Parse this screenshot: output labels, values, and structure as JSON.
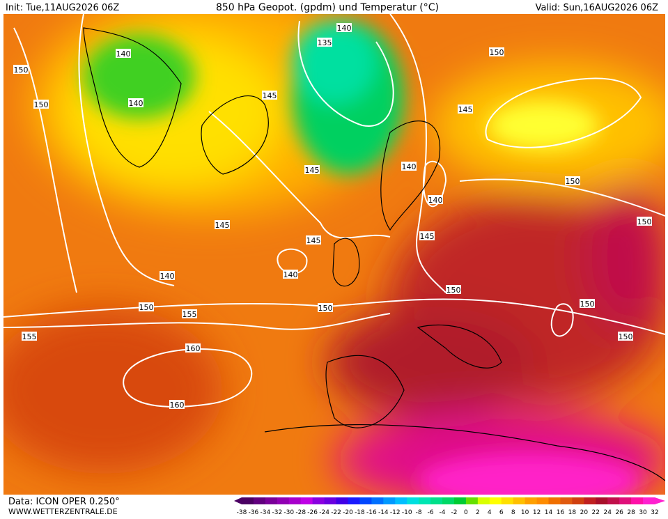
{
  "header": {
    "init": "Init: Tue,11AUG2026 06Z",
    "title": "850 hPa Geopot. (gpdm) und Temperatur (°C)",
    "valid": "Valid: Sun,16AUG2026 06Z"
  },
  "footer": {
    "data": "Data: ICON OPER 0.250°",
    "site": "WWW.WETTERZENTRALE.DE"
  },
  "colorbar": {
    "ticks": [
      -38,
      -36,
      -34,
      -32,
      -30,
      -28,
      -26,
      -24,
      -22,
      -20,
      -18,
      -16,
      -14,
      -12,
      -10,
      -8,
      -6,
      -4,
      -2,
      0,
      2,
      4,
      6,
      8,
      10,
      12,
      14,
      16,
      18,
      20,
      22,
      24,
      26,
      28,
      30,
      32
    ],
    "colors": [
      "#4b0063",
      "#62007f",
      "#7a0099",
      "#9100b3",
      "#a800cc",
      "#bf00e6",
      "#8a00e0",
      "#6a00e0",
      "#4000e6",
      "#1a1aff",
      "#0047ff",
      "#0070ff",
      "#0099ff",
      "#00bfff",
      "#00dfe0",
      "#00e6b3",
      "#00e08a",
      "#00d966",
      "#00cc33",
      "#66e000",
      "#d9ff00",
      "#ffff00",
      "#ffe000",
      "#ffc000",
      "#ffa000",
      "#ff8c00",
      "#f07000",
      "#e05a10",
      "#d04010",
      "#c02020",
      "#a8102a",
      "#c0104a",
      "#e0107a",
      "#ff10a8",
      "#ff20d0"
    ]
  },
  "contours": [
    140,
    135,
    150,
    145,
    140,
    150,
    150,
    140,
    145,
    150,
    140,
    145,
    145,
    140,
    150,
    140,
    145,
    140,
    145,
    150,
    150,
    155,
    155,
    150,
    160,
    160,
    150,
    150
  ]
}
